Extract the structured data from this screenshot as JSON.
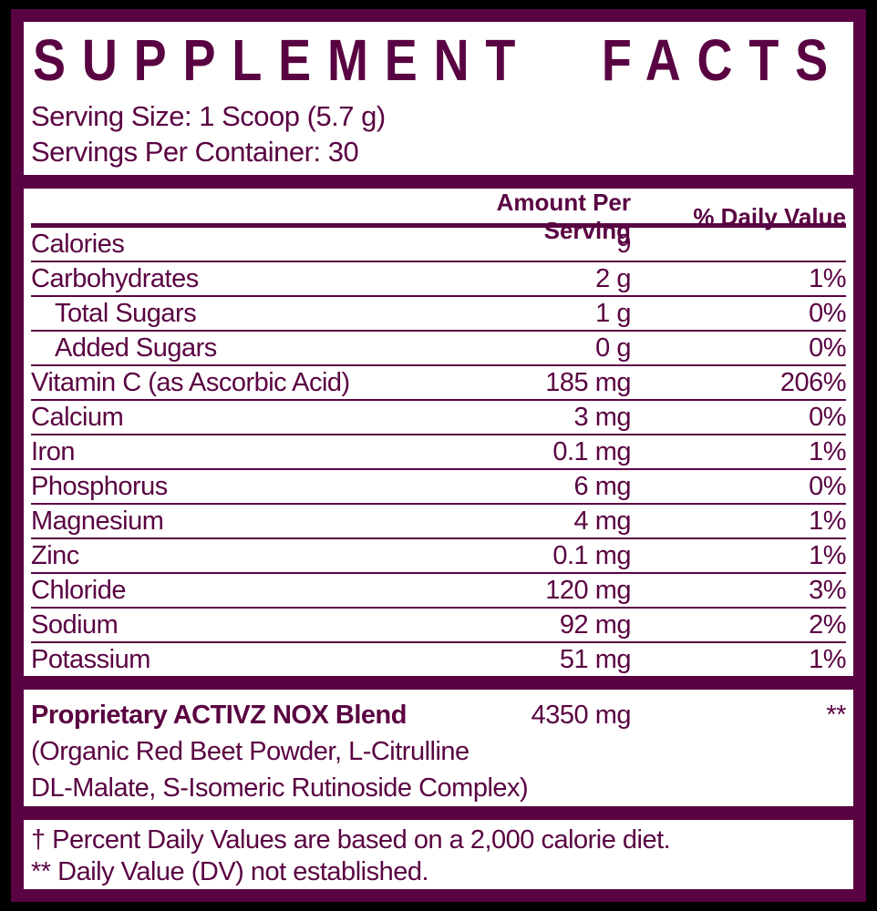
{
  "colors": {
    "accent": "#5a0342",
    "panel_background": "#ffffff",
    "outer_background": "#000000"
  },
  "title": {
    "word1": "SUPPLEMENT",
    "word2": "FACTS"
  },
  "serving": {
    "size": "Serving Size: 1 Scoop (5.7 g)",
    "per_container": "Servings Per Container: 30"
  },
  "table": {
    "headers": {
      "amount": "Amount Per Serving",
      "daily_value": "% Daily Value"
    },
    "rows": [
      {
        "name": "Calories",
        "amount": "9",
        "dv": ""
      },
      {
        "name": "Carbohydrates",
        "amount": "2 g",
        "dv": "1%"
      },
      {
        "name": "Total Sugars",
        "amount": "1 g",
        "dv": "0%"
      },
      {
        "name": "Added Sugars",
        "amount": "0 g",
        "dv": "0%"
      },
      {
        "name": "Vitamin C (as Ascorbic Acid)",
        "amount": "185 mg",
        "dv": "206%"
      },
      {
        "name": "Calcium",
        "amount": "3 mg",
        "dv": "0%"
      },
      {
        "name": "Iron",
        "amount": "0.1 mg",
        "dv": "1%"
      },
      {
        "name": "Phosphorus",
        "amount": "6 mg",
        "dv": "0%"
      },
      {
        "name": "Magnesium",
        "amount": "4 mg",
        "dv": "1%"
      },
      {
        "name": "Zinc",
        "amount": "0.1 mg",
        "dv": "1%"
      },
      {
        "name": "Chloride",
        "amount": "120 mg",
        "dv": "3%"
      },
      {
        "name": "Sodium",
        "amount": "92 mg",
        "dv": "2%"
      },
      {
        "name": "Potassium",
        "amount": "51 mg",
        "dv": "1%"
      }
    ]
  },
  "blend": {
    "name": "Proprietary ACTIVZ NOX Blend",
    "amount": "4350 mg",
    "dv": "**",
    "ingredients_line1": "(Organic Red Beet Powder, L-Citrulline",
    "ingredients_line2": "DL-Malate, S-Isomeric Rutinoside Complex)"
  },
  "footnotes": {
    "daily_value_note": "† Percent Daily Values are based on a 2,000 calorie diet.",
    "not_established_note": "** Daily Value (DV) not established."
  }
}
